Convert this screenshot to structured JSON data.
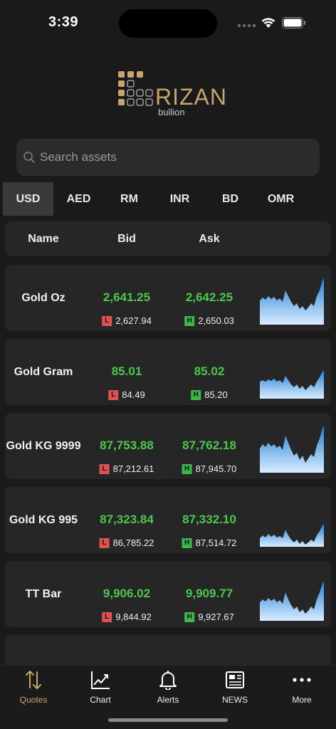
{
  "status": {
    "time": "3:39"
  },
  "brand": {
    "name": "RIZAN",
    "sub": "bullion",
    "gold": "#c8a46e"
  },
  "search": {
    "placeholder": "Search assets"
  },
  "currencies": [
    {
      "label": "USD",
      "active": true
    },
    {
      "label": "AED",
      "active": false
    },
    {
      "label": "RM",
      "active": false
    },
    {
      "label": "INR",
      "active": false
    },
    {
      "label": "BD",
      "active": false
    },
    {
      "label": "OMR",
      "active": false
    }
  ],
  "table": {
    "headers": {
      "name": "Name",
      "bid": "Bid",
      "ask": "Ask"
    },
    "rows": [
      {
        "name": "Gold Oz",
        "bid": "2,641.25",
        "ask": "2,642.25",
        "low": "2,627.94",
        "high": "2,650.03"
      },
      {
        "name": "Gold Gram",
        "bid": "85.01",
        "ask": "85.02",
        "low": "84.49",
        "high": "85.20"
      },
      {
        "name": "Gold KG 9999",
        "bid": "87,753.88",
        "ask": "87,762.18",
        "low": "87,212.61",
        "high": "87,945.70"
      },
      {
        "name": "Gold KG 995",
        "bid": "87,323.84",
        "ask": "87,332.10",
        "low": "86,785.22",
        "high": "87,514.72"
      },
      {
        "name": "TT Bar",
        "bid": "9,906.02",
        "ask": "9,909.77",
        "low": "9,844.92",
        "high": "9,927.67"
      }
    ],
    "badges": {
      "low": "L",
      "high": "H"
    },
    "colors": {
      "price": "#4cc94c",
      "low": "#e05252",
      "high": "#3cb84b"
    }
  },
  "nav": {
    "items": [
      {
        "label": "Quotes",
        "icon": "sort-arrows-icon",
        "active": true
      },
      {
        "label": "Chart",
        "icon": "line-chart-icon",
        "active": false
      },
      {
        "label": "Alerts",
        "icon": "bell-icon",
        "active": false
      },
      {
        "label": "NEWS",
        "icon": "newspaper-icon",
        "active": false
      },
      {
        "label": "More",
        "icon": "more-dots-icon",
        "active": false
      }
    ]
  }
}
